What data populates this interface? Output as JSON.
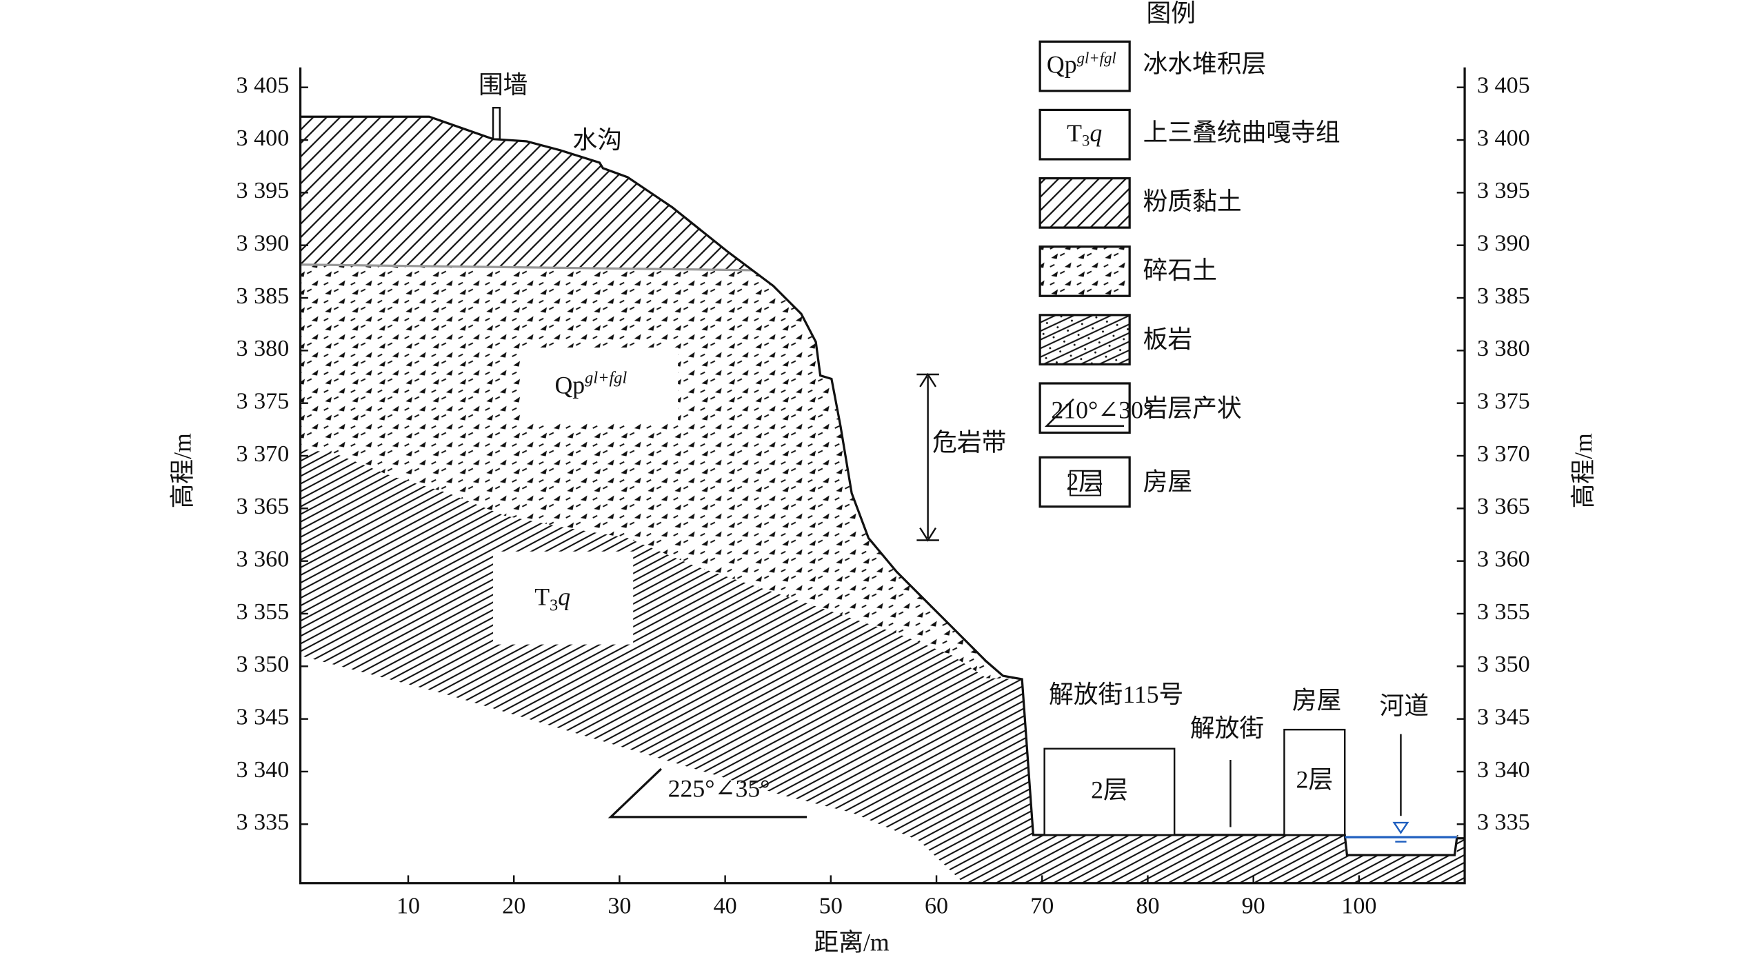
{
  "axes": {
    "xlabel": "距离/m",
    "ylabel": "高程/m",
    "xlim": [
      0,
      110
    ],
    "ylim": [
      3329.4,
      3406.9
    ],
    "xticks": [
      10,
      20,
      30,
      40,
      50,
      60,
      70,
      80,
      90,
      100
    ],
    "yticks": [
      {
        "value": 3335,
        "label": "3 335"
      },
      {
        "value": 3340,
        "label": "3 340"
      },
      {
        "value": 3345,
        "label": "3 345"
      },
      {
        "value": 3350,
        "label": "3 350"
      },
      {
        "value": 3355,
        "label": "3 355"
      },
      {
        "value": 3360,
        "label": "3 360"
      },
      {
        "value": 3365,
        "label": "3 365"
      },
      {
        "value": 3370,
        "label": "3 370"
      },
      {
        "value": 3375,
        "label": "3 375"
      },
      {
        "value": 3380,
        "label": "3 380"
      },
      {
        "value": 3385,
        "label": "3 385"
      },
      {
        "value": 3390,
        "label": "3 390"
      },
      {
        "value": 3395,
        "label": "3 395"
      },
      {
        "value": 3400,
        "label": "3 400"
      },
      {
        "value": 3405,
        "label": "3 405"
      }
    ]
  },
  "legend": {
    "title": "图例",
    "items": [
      {
        "symbol": "Qp",
        "symbol_sup": "gl+fgl",
        "label": "冰水堆积层"
      },
      {
        "symbol": "T",
        "symbol_sub": "3",
        "symbol_italic": "q",
        "label": "上三叠统曲嘎寺组"
      },
      {
        "label": "粉质黏土"
      },
      {
        "label": "碎石土"
      },
      {
        "label": "板岩"
      },
      {
        "symbol": "210°∠30°",
        "label": "岩层产状"
      },
      {
        "symbol": "2层",
        "label": "房屋"
      }
    ]
  },
  "annotations": {
    "wall": "围墙",
    "ditch": "水沟",
    "danger_zone": "危岩带",
    "attitude": "225°∠35°",
    "unit_qp": {
      "text": "Qp",
      "sup": "gl+fgl"
    },
    "unit_t": {
      "text": "T",
      "sub": "3",
      "italic": "q"
    },
    "street_115": "解放街115号",
    "street": "解放街",
    "house": "房屋",
    "river": "河道",
    "house_1": "2层",
    "house_2": "2层"
  }
}
